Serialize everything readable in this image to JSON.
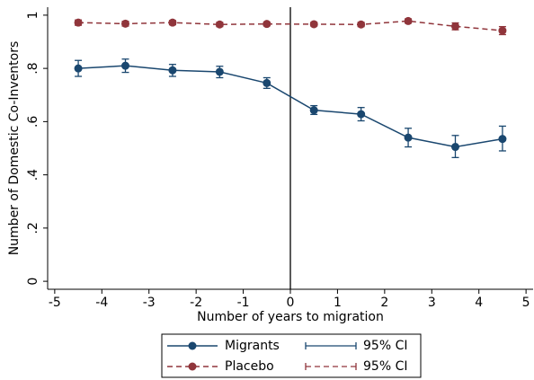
{
  "chart_data": {
    "type": "line",
    "y_label": "Number of Domestic Co-Inventors",
    "x_label": "Number of years to migration",
    "x": [
      -4.5,
      -3.5,
      -2.5,
      -1.5,
      -0.5,
      0.5,
      1.5,
      2.5,
      3.5,
      4.5
    ],
    "series": [
      {
        "name": "Migrants",
        "ci_name": "95% CI",
        "color": "#1a476f",
        "dashed": false,
        "values": [
          0.8,
          0.81,
          0.793,
          0.787,
          0.745,
          0.643,
          0.628,
          0.54,
          0.505,
          0.535
        ],
        "lower": [
          0.77,
          0.785,
          0.77,
          0.765,
          0.725,
          0.627,
          0.603,
          0.505,
          0.465,
          0.49
        ],
        "upper": [
          0.83,
          0.835,
          0.815,
          0.808,
          0.765,
          0.66,
          0.653,
          0.575,
          0.548,
          0.583
        ]
      },
      {
        "name": "Placebo",
        "ci_name": "95% CI",
        "color": "#90353b",
        "dashed": true,
        "values": [
          0.972,
          0.968,
          0.972,
          0.965,
          0.967,
          0.966,
          0.965,
          0.978,
          0.958,
          0.942
        ],
        "lower": [
          0.962,
          0.959,
          0.964,
          0.957,
          0.96,
          0.959,
          0.957,
          0.97,
          0.945,
          0.927
        ],
        "upper": [
          0.982,
          0.977,
          0.98,
          0.973,
          0.974,
          0.973,
          0.973,
          0.986,
          0.971,
          0.957
        ]
      }
    ],
    "xlim": [
      -5.15,
      5.15
    ],
    "ylim": [
      -0.03,
      1.03
    ],
    "xticks": [
      -5,
      -4,
      -3,
      -2,
      -1,
      0,
      1,
      2,
      3,
      4,
      5
    ],
    "yticks": [
      0,
      {
        "value": 0.2,
        "label": ".2"
      },
      {
        "value": 0.4,
        "label": ".4"
      },
      {
        "value": 0.6,
        "label": ".6"
      },
      {
        "value": 0.8,
        "label": ".8"
      },
      1
    ],
    "reference_line_x": 0
  }
}
